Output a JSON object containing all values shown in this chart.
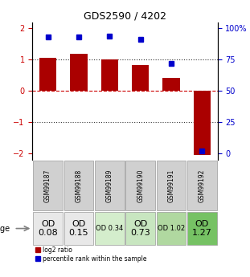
{
  "title": "GDS2590 / 4202",
  "samples": [
    "GSM99187",
    "GSM99188",
    "GSM99189",
    "GSM99190",
    "GSM99191",
    "GSM99192"
  ],
  "log2_ratio": [
    1.05,
    1.18,
    1.02,
    0.82,
    0.42,
    -2.05
  ],
  "percentile_rank": [
    93,
    93,
    94,
    91,
    72,
    2
  ],
  "bar_color": "#aa0000",
  "dot_color": "#0000cc",
  "ylim": [
    -2.2,
    2.2
  ],
  "y_right_ticks": [
    0,
    25,
    50,
    75,
    100
  ],
  "y_right_labels": [
    "0",
    "25",
    "50",
    "75",
    "100%"
  ],
  "y_left_ticks": [
    -2,
    -1,
    0,
    1,
    2
  ],
  "hline_y0_color": "#cc0000",
  "hline_dotted_color": "#333333",
  "age_cell_colors": [
    "#e8e8e8",
    "#e8e8e8",
    "#d4edcc",
    "#c8e6c0",
    "#b0d8a0",
    "#76c264"
  ],
  "age_labels_text": [
    "OD\n0.08",
    "OD\n0.15",
    "OD 0.34",
    "OD\n0.73",
    "OD 1.02",
    "OD\n1.27"
  ],
  "age_fontsizes": [
    8,
    8,
    6,
    8,
    6,
    8
  ],
  "legend_red_label": "log2 ratio",
  "legend_blue_label": "percentile rank within the sample"
}
